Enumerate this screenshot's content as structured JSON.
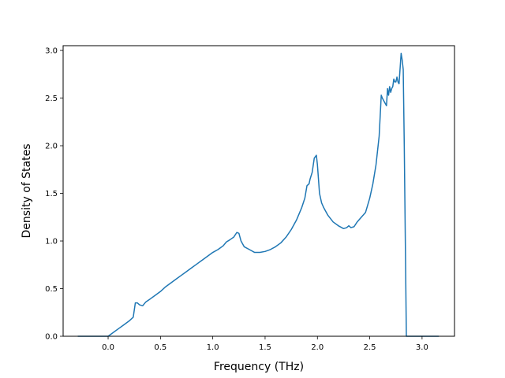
{
  "chart_data": {
    "type": "line",
    "title": "",
    "xlabel": "Frequency (THz)",
    "ylabel": "Density of States",
    "xlim": [
      -0.43,
      3.31
    ],
    "ylim": [
      0.0,
      3.05
    ],
    "grid": false,
    "xticks": [
      0.0,
      0.5,
      1.0,
      1.5,
      2.0,
      2.5,
      3.0
    ],
    "xtick_labels": [
      "0.0",
      "0.5",
      "1.0",
      "1.5",
      "2.0",
      "2.5",
      "3.0"
    ],
    "yticks": [
      0.0,
      0.5,
      1.0,
      1.5,
      2.0,
      2.5,
      3.0
    ],
    "ytick_labels": [
      "0.0",
      "0.5",
      "1.0",
      "1.5",
      "2.0",
      "2.5",
      "3.0"
    ],
    "line_color": "#1f77b4",
    "series": [
      {
        "x": [
          -0.29,
          -0.1,
          0.0,
          0.05,
          0.1,
          0.15,
          0.2,
          0.24,
          0.26,
          0.28,
          0.3,
          0.33,
          0.36,
          0.4,
          0.45,
          0.5,
          0.55,
          0.6,
          0.65,
          0.7,
          0.75,
          0.8,
          0.85,
          0.9,
          0.95,
          1.0,
          1.05,
          1.1,
          1.13,
          1.16,
          1.2,
          1.23,
          1.25,
          1.27,
          1.3,
          1.35,
          1.4,
          1.45,
          1.5,
          1.55,
          1.6,
          1.65,
          1.7,
          1.75,
          1.8,
          1.85,
          1.88,
          1.9,
          1.92,
          1.93,
          1.95,
          1.97,
          1.99,
          2.0,
          2.02,
          2.04,
          2.06,
          2.1,
          2.15,
          2.2,
          2.25,
          2.28,
          2.3,
          2.32,
          2.35,
          2.38,
          2.42,
          2.46,
          2.5,
          2.53,
          2.56,
          2.59,
          2.61,
          2.62,
          2.64,
          2.66,
          2.67,
          2.68,
          2.69,
          2.7,
          2.71,
          2.72,
          2.73,
          2.74,
          2.75,
          2.76,
          2.77,
          2.78,
          2.8,
          2.81,
          2.82,
          2.83,
          2.84,
          2.85,
          2.87,
          2.9,
          3.0,
          3.16
        ],
        "y": [
          0.0,
          0.0,
          0.0,
          0.04,
          0.08,
          0.12,
          0.16,
          0.2,
          0.35,
          0.35,
          0.33,
          0.32,
          0.36,
          0.39,
          0.43,
          0.47,
          0.52,
          0.56,
          0.6,
          0.64,
          0.68,
          0.72,
          0.76,
          0.8,
          0.84,
          0.88,
          0.91,
          0.95,
          0.99,
          1.01,
          1.04,
          1.09,
          1.08,
          1.0,
          0.94,
          0.91,
          0.88,
          0.88,
          0.89,
          0.91,
          0.94,
          0.98,
          1.04,
          1.12,
          1.22,
          1.35,
          1.45,
          1.58,
          1.6,
          1.65,
          1.72,
          1.87,
          1.9,
          1.8,
          1.5,
          1.4,
          1.35,
          1.27,
          1.2,
          1.16,
          1.13,
          1.14,
          1.16,
          1.14,
          1.15,
          1.2,
          1.25,
          1.3,
          1.45,
          1.6,
          1.8,
          2.1,
          2.53,
          2.5,
          2.46,
          2.42,
          2.6,
          2.53,
          2.62,
          2.56,
          2.6,
          2.62,
          2.7,
          2.67,
          2.67,
          2.72,
          2.67,
          2.65,
          2.97,
          2.9,
          2.8,
          2.0,
          1.0,
          0.0,
          0.0,
          0.0,
          0.0,
          0.0
        ]
      }
    ]
  }
}
